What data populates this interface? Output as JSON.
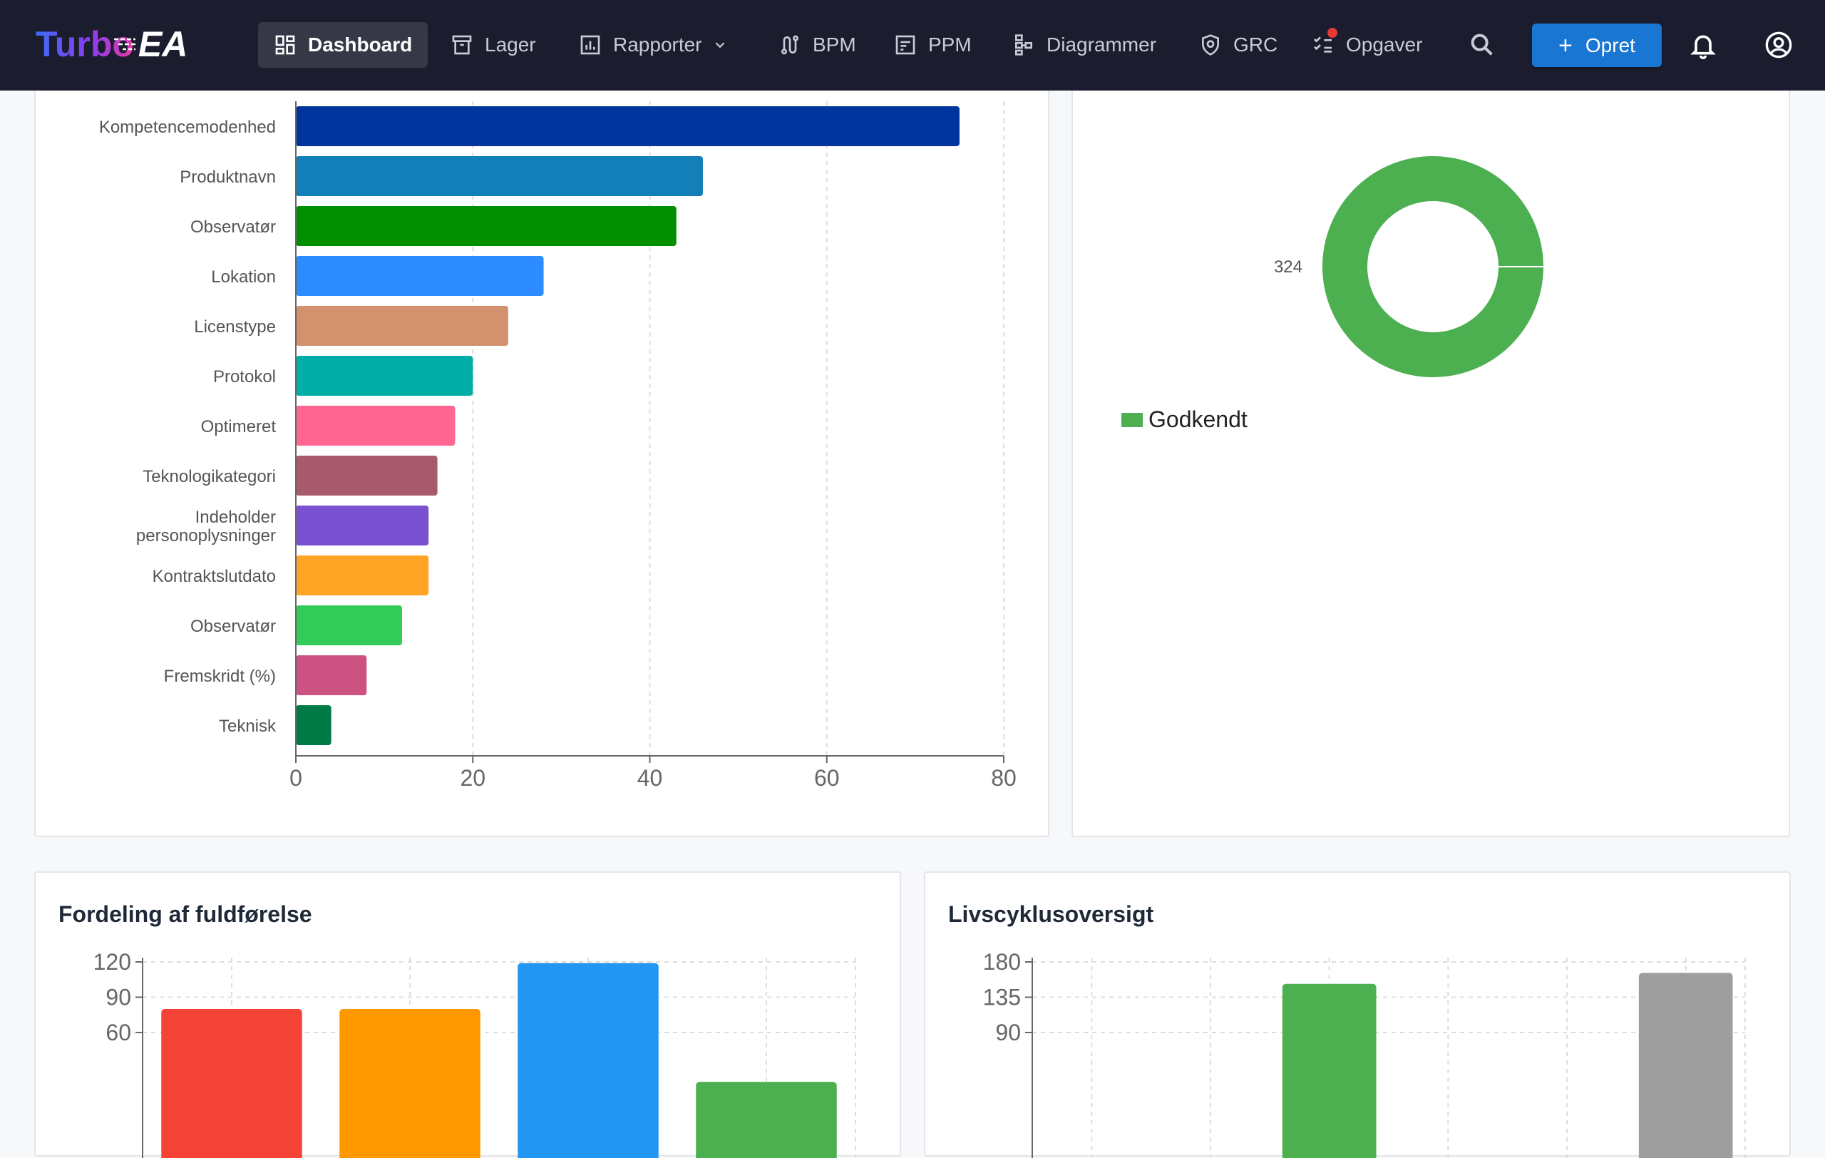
{
  "nav": {
    "logo_turbo": "Turbo",
    "logo_ea": "EA",
    "items": [
      {
        "label": "Dashboard",
        "icon": "dashboard-icon",
        "active": true
      },
      {
        "label": "Lager",
        "icon": "archive-icon"
      },
      {
        "label": "Rapporter",
        "icon": "report-icon",
        "dropdown": true
      },
      {
        "label": "BPM",
        "icon": "route-icon"
      },
      {
        "label": "PPM",
        "icon": "project-icon"
      },
      {
        "label": "Diagrammer",
        "icon": "diagram-icon"
      },
      {
        "label": "GRC",
        "icon": "shield-icon"
      },
      {
        "label": "Opgaver",
        "icon": "checklist-icon",
        "notification": true
      }
    ],
    "create_label": "Opret",
    "search_icon": "search-icon",
    "bell_icon": "bell-icon",
    "account_icon": "account-icon"
  },
  "colors": {
    "nav_bg": "#1b1d2e",
    "accent": "#1976d2",
    "approved": "#4caf50"
  },
  "charts": [
    {
      "type": "bar",
      "orientation": "horizontal",
      "categories": [
        "Kompetencemodenhed",
        "Produktnavn",
        "Observatør",
        "Lokation",
        "Licenstype",
        "Protokol",
        "Optimeret",
        "Teknologikategori",
        "Indeholder personoplysninger",
        "Kontraktslutdato",
        "Observatør",
        "Fremskridt (%)",
        "Teknisk"
      ],
      "category_lines": [
        [
          "Kompetencemodenhed"
        ],
        [
          "Produktnavn"
        ],
        [
          "Observatør"
        ],
        [
          "Lokation"
        ],
        [
          "Licenstype"
        ],
        [
          "Protokol"
        ],
        [
          "Optimeret"
        ],
        [
          "Teknologikategori"
        ],
        [
          "Indeholder",
          "personoplysninger"
        ],
        [
          "Kontraktslutdato"
        ],
        [
          "Observatør"
        ],
        [
          "Fremskridt (%)"
        ],
        [
          "Teknisk"
        ]
      ],
      "values": [
        75,
        46,
        43,
        28,
        24,
        20,
        18,
        16,
        15,
        15,
        12,
        8,
        4
      ],
      "colors": [
        "#00359e",
        "#127fb8",
        "#008f00",
        "#2d8cff",
        "#d4916e",
        "#00aea7",
        "#ff6691",
        "#a85a6d",
        "#7a52d1",
        "#ffa424",
        "#33cc5a",
        "#cc5282",
        "#007a47"
      ],
      "xlim": [
        0,
        80
      ],
      "xticks": [
        0,
        20,
        40,
        60,
        80
      ],
      "grid": true
    },
    {
      "type": "pie",
      "style": "donut",
      "slices": [
        {
          "label": "Godkendt",
          "value": 324,
          "color": "#4caf50"
        }
      ],
      "value_label": "324",
      "legend": [
        {
          "label": "Godkendt",
          "color": "#4caf50"
        }
      ],
      "legend_position": "bottom-left"
    },
    {
      "type": "bar",
      "title": "Fordeling af fuldførelse",
      "categories": [
        "",
        "",
        "",
        ""
      ],
      "values": [
        80,
        80,
        119,
        18
      ],
      "colors": [
        "#f44336",
        "#ff9800",
        "#2196f3",
        "#4caf50"
      ],
      "ylim": [
        0,
        120
      ],
      "yticks": [
        60,
        90,
        120
      ],
      "grid": true
    },
    {
      "type": "bar",
      "title": "Livscyklusoversigt",
      "categories": [
        "",
        "",
        "",
        "",
        "",
        ""
      ],
      "values": [
        0,
        0,
        152,
        0,
        0,
        166
      ],
      "colors": [
        "#4caf50",
        "#4caf50",
        "#4caf50",
        "#9e9e9e",
        "#9e9e9e",
        "#9e9e9e"
      ],
      "ylim": [
        0,
        180
      ],
      "yticks": [
        90,
        135,
        180
      ],
      "grid": true
    }
  ]
}
